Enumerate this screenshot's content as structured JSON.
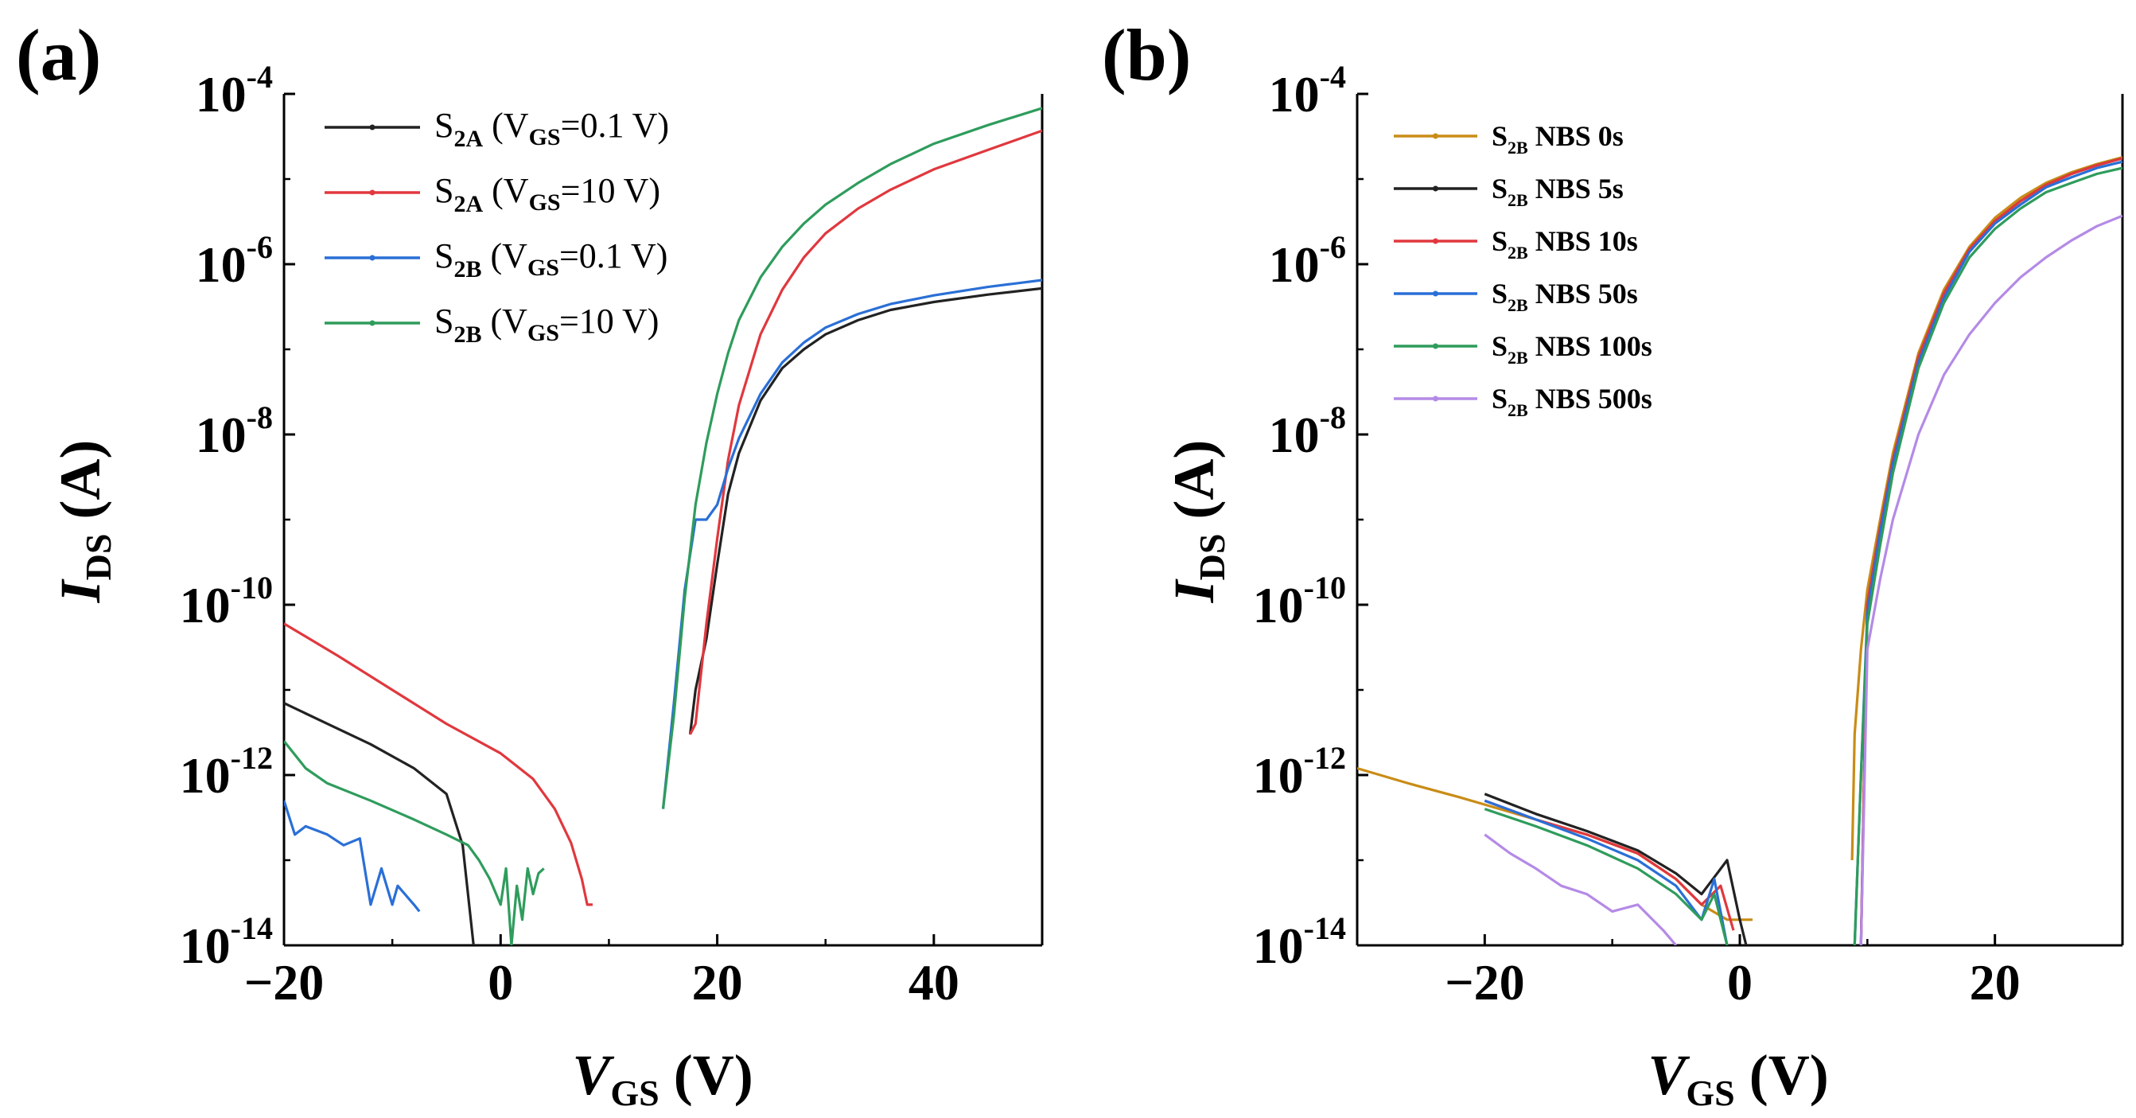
{
  "colors": {
    "black": "#222222",
    "red": "#e0383e",
    "blue": "#2a6fd6",
    "green": "#2f9c5c",
    "orange": "#c98c16",
    "purple": "#b48ae6"
  },
  "chart_data": [
    {
      "panel": "(a)",
      "type": "line",
      "xlabel": "V",
      "xlabel_sub": "GS",
      "xlabel_unit": " (V)",
      "ylabel": "I",
      "ylabel_sub": "DS",
      "ylabel_unit": " (A)",
      "xlim": [
        -20,
        50
      ],
      "ylim": [
        1e-14,
        0.0001
      ],
      "yscale": "log",
      "xticks": [
        -20,
        0,
        20,
        40
      ],
      "xtick_labels": [
        "−20",
        "0",
        "20",
        "40"
      ],
      "yticks": [
        {
          "base": "10",
          "exp": "-4",
          "value": 0.0001
        },
        {
          "base": "10",
          "exp": "-6",
          "value": 1e-06
        },
        {
          "base": "10",
          "exp": "-8",
          "value": 1e-08
        },
        {
          "base": "10",
          "exp": "-10",
          "value": 1e-10
        },
        {
          "base": "10",
          "exp": "-12",
          "value": 1e-12
        },
        {
          "base": "10",
          "exp": "-14",
          "value": 1e-14
        }
      ],
      "legend_position": "top-left",
      "series": [
        {
          "name": "S",
          "name_sub": "2A",
          "name_rest": " (V",
          "name_sub2": "GS",
          "name_tail": "=0.1 V)",
          "color": "black",
          "off_x": [
            -20,
            -16,
            -12,
            -8,
            -5,
            -3.5,
            -2.5
          ],
          "off_y": [
            7e-12,
            4e-12,
            2.3e-12,
            1.2e-12,
            6e-13,
            1.5e-13,
            1e-14
          ],
          "on_x": [
            17.5,
            18,
            19,
            20,
            21,
            22,
            24,
            26,
            28,
            30,
            33,
            36,
            40,
            45,
            50
          ],
          "on_y": [
            3e-12,
            1e-11,
            4e-11,
            3e-10,
            2e-09,
            6e-09,
            2.5e-08,
            6e-08,
            1e-07,
            1.5e-07,
            2.2e-07,
            2.9e-07,
            3.6e-07,
            4.4e-07,
            5.2e-07
          ]
        },
        {
          "name": "S",
          "name_sub": "2A",
          "name_rest": " (V",
          "name_sub2": "GS",
          "name_tail": "=10 V)",
          "color": "red",
          "off_x": [
            -20,
            -15,
            -10,
            -5,
            0,
            3,
            5,
            6.5,
            7.5,
            8,
            8.5
          ],
          "off_y": [
            6e-11,
            2.5e-11,
            1e-11,
            4e-12,
            1.8e-12,
            9e-13,
            4e-13,
            1.6e-13,
            6e-14,
            3e-14,
            3e-14
          ],
          "on_x": [
            17.5,
            18,
            19,
            20,
            21,
            22,
            24,
            26,
            28,
            30,
            33,
            36,
            40,
            45,
            50
          ],
          "on_y": [
            3e-12,
            4e-12,
            6e-11,
            6e-10,
            5e-09,
            2.2e-08,
            1.5e-07,
            5e-07,
            1.2e-06,
            2.3e-06,
            4.5e-06,
            7.5e-06,
            1.3e-05,
            2.2e-05,
            3.7e-05
          ]
        },
        {
          "name": "S",
          "name_sub": "2B",
          "name_rest": " (V",
          "name_sub2": "GS",
          "name_tail": "=0.1 V)",
          "color": "blue",
          "off_x": [
            -20,
            -19,
            -18,
            -16,
            -14.5,
            -13,
            -12,
            -11,
            -10,
            -9.5,
            -8,
            -7.5
          ],
          "off_y": [
            5e-13,
            2e-13,
            2.5e-13,
            2e-13,
            1.5e-13,
            1.8e-13,
            3e-14,
            8e-14,
            3e-14,
            5e-14,
            3e-14,
            2.5e-14
          ],
          "on_x": [
            15,
            16,
            17,
            18,
            19,
            20,
            21,
            22,
            24,
            26,
            28,
            30,
            33,
            36,
            40,
            45,
            50
          ],
          "on_y": [
            4e-13,
            7e-12,
            1.5e-10,
            1e-09,
            1e-09,
            1.5e-09,
            4e-09,
            9e-09,
            3e-08,
            7e-08,
            1.2e-07,
            1.8e-07,
            2.6e-07,
            3.4e-07,
            4.3e-07,
            5.4e-07,
            6.5e-07
          ]
        },
        {
          "name": "S",
          "name_sub": "2B",
          "name_rest": " (V",
          "name_sub2": "GS",
          "name_tail": "=10 V)",
          "color": "green",
          "off_x": [
            -20,
            -18,
            -16,
            -12,
            -8,
            -5,
            -3,
            -2,
            -1,
            0,
            0.5,
            1,
            1.5,
            2,
            2.5,
            3,
            3.5,
            4
          ],
          "off_y": [
            2.5e-12,
            1.2e-12,
            8e-13,
            5e-13,
            3e-13,
            2e-13,
            1.5e-13,
            1e-13,
            6e-14,
            3e-14,
            8e-14,
            1e-14,
            5e-14,
            2e-14,
            8e-14,
            4e-14,
            7e-14,
            8e-14
          ],
          "on_x": [
            15,
            16,
            17,
            18,
            19,
            20,
            21,
            22,
            24,
            26,
            28,
            30,
            33,
            36,
            40,
            45,
            50
          ],
          "on_y": [
            4e-13,
            5e-12,
            1.2e-10,
            1.5e-09,
            8e-09,
            3e-08,
            9e-08,
            2.2e-07,
            7e-07,
            1.6e-06,
            3e-06,
            5e-06,
            9e-06,
            1.5e-05,
            2.6e-05,
            4.3e-05,
            6.8e-05
          ]
        }
      ]
    },
    {
      "panel": "(b)",
      "type": "line",
      "xlabel": "V",
      "xlabel_sub": "GS",
      "xlabel_unit": " (V)",
      "ylabel": "I",
      "ylabel_sub": "DS",
      "ylabel_unit": " (A)",
      "xlim": [
        -30,
        30
      ],
      "ylim": [
        1e-14,
        0.0001
      ],
      "yscale": "log",
      "xticks": [
        -20,
        0,
        20
      ],
      "xtick_labels": [
        "−20",
        "0",
        "20"
      ],
      "yticks": [
        {
          "base": "10",
          "exp": "-4",
          "value": 0.0001
        },
        {
          "base": "10",
          "exp": "-6",
          "value": 1e-06
        },
        {
          "base": "10",
          "exp": "-8",
          "value": 1e-08
        },
        {
          "base": "10",
          "exp": "-10",
          "value": 1e-10
        },
        {
          "base": "10",
          "exp": "-12",
          "value": 1e-12
        },
        {
          "base": "10",
          "exp": "-14",
          "value": 1e-14
        }
      ],
      "legend_position": "top-left",
      "series": [
        {
          "name": "S",
          "name_sub": "2B",
          "name_tail": " NBS 0s",
          "color": "orange",
          "off_x": [
            -30,
            -26,
            -22,
            -20,
            -16,
            -12,
            -8,
            -5,
            -3,
            -1,
            1
          ],
          "off_y": [
            1.2e-12,
            8e-13,
            5.5e-13,
            4.5e-13,
            3e-13,
            2e-13,
            1.2e-13,
            6e-14,
            3e-14,
            2e-14,
            2e-14
          ],
          "on_x": [
            8.8,
            9,
            9.5,
            10,
            11,
            12,
            14,
            16,
            18,
            20,
            22,
            24,
            26,
            28,
            30
          ],
          "on_y": [
            1e-13,
            3e-12,
            3e-11,
            1.5e-10,
            1e-09,
            6e-09,
            9e-08,
            5e-07,
            1.6e-06,
            3.5e-06,
            6e-06,
            9e-06,
            1.2e-05,
            1.5e-05,
            1.8e-05
          ]
        },
        {
          "name": "S",
          "name_sub": "2B",
          "name_tail": " NBS 5s",
          "color": "black",
          "off_x": [
            -20,
            -16,
            -12,
            -8,
            -5,
            -3,
            -1,
            0,
            0.5
          ],
          "off_y": [
            6e-13,
            3.5e-13,
            2.2e-13,
            1.3e-13,
            7e-14,
            4e-14,
            1e-13,
            2e-14,
            1e-14
          ],
          "on_x": [
            9.5,
            10,
            11,
            12,
            14,
            16,
            18,
            20,
            22,
            24,
            26,
            28,
            30
          ],
          "on_y": [
            1e-14,
            1e-10,
            8e-10,
            5e-09,
            8e-08,
            4.5e-07,
            1.5e-06,
            3.2e-06,
            5.5e-06,
            8.5e-06,
            1.15e-05,
            1.45e-05,
            1.75e-05
          ]
        },
        {
          "name": "S",
          "name_sub": "2B",
          "name_tail": " NBS 10s",
          "color": "red",
          "off_x": [
            -20,
            -16,
            -12,
            -8,
            -5,
            -3,
            -1.5,
            -0.5
          ],
          "off_y": [
            5e-13,
            3e-13,
            2e-13,
            1.2e-13,
            6e-14,
            3e-14,
            5e-14,
            1.5e-14
          ],
          "on_x": [
            9.5,
            10,
            11,
            12,
            14,
            16,
            18,
            20,
            22,
            24,
            26,
            28,
            30
          ],
          "on_y": [
            1e-14,
            1e-10,
            8e-10,
            5e-09,
            8e-08,
            4.5e-07,
            1.5e-06,
            3.2e-06,
            5.5e-06,
            8.5e-06,
            1.15e-05,
            1.45e-05,
            1.75e-05
          ]
        },
        {
          "name": "S",
          "name_sub": "2B",
          "name_tail": " NBS 50s",
          "color": "blue",
          "off_x": [
            -20,
            -16,
            -12,
            -8,
            -5,
            -3,
            -2,
            -1
          ],
          "off_y": [
            5e-13,
            3e-13,
            1.8e-13,
            1e-13,
            5e-14,
            2e-14,
            6e-14,
            1e-14
          ],
          "on_x": [
            9,
            9.5,
            10,
            11,
            12,
            14,
            16,
            18,
            20,
            22,
            24,
            26,
            28,
            30
          ],
          "on_y": [
            1e-14,
            1e-12,
            8e-11,
            7e-10,
            4.5e-09,
            7e-08,
            4e-07,
            1.4e-06,
            3e-06,
            5e-06,
            8e-06,
            1.05e-05,
            1.35e-05,
            1.6e-05
          ]
        },
        {
          "name": "S",
          "name_sub": "2B",
          "name_tail": " NBS 100s",
          "color": "green",
          "off_x": [
            -20,
            -16,
            -12,
            -8,
            -5,
            -3,
            -2,
            -1
          ],
          "off_y": [
            4e-13,
            2.5e-13,
            1.5e-13,
            8e-14,
            4e-14,
            2e-14,
            4e-14,
            1e-14
          ],
          "on_x": [
            9,
            9.5,
            10,
            11,
            12,
            14,
            16,
            18,
            20,
            22,
            24,
            26,
            28,
            30
          ],
          "on_y": [
            1e-14,
            1e-12,
            6e-11,
            5e-10,
            3.5e-09,
            6e-08,
            3.5e-07,
            1.2e-06,
            2.6e-06,
            4.5e-06,
            7e-06,
            9e-06,
            1.15e-05,
            1.35e-05
          ]
        },
        {
          "name": "S",
          "name_sub": "2B",
          "name_tail": " NBS 500s",
          "color": "purple",
          "off_x": [
            -20,
            -18,
            -16,
            -14,
            -12,
            -10,
            -8,
            -6,
            -5
          ],
          "off_y": [
            2e-13,
            1.2e-13,
            8e-14,
            5e-14,
            4e-14,
            2.5e-14,
            3e-14,
            1.5e-14,
            1e-14
          ],
          "on_x": [
            9.5,
            10,
            11,
            12,
            14,
            16,
            18,
            20,
            22,
            24,
            26,
            28,
            30
          ],
          "on_y": [
            1e-14,
            3e-11,
            2e-10,
            1e-09,
            1e-08,
            5e-08,
            1.5e-07,
            3.5e-07,
            7e-07,
            1.2e-06,
            1.9e-06,
            2.8e-06,
            3.7e-06
          ]
        }
      ]
    }
  ]
}
